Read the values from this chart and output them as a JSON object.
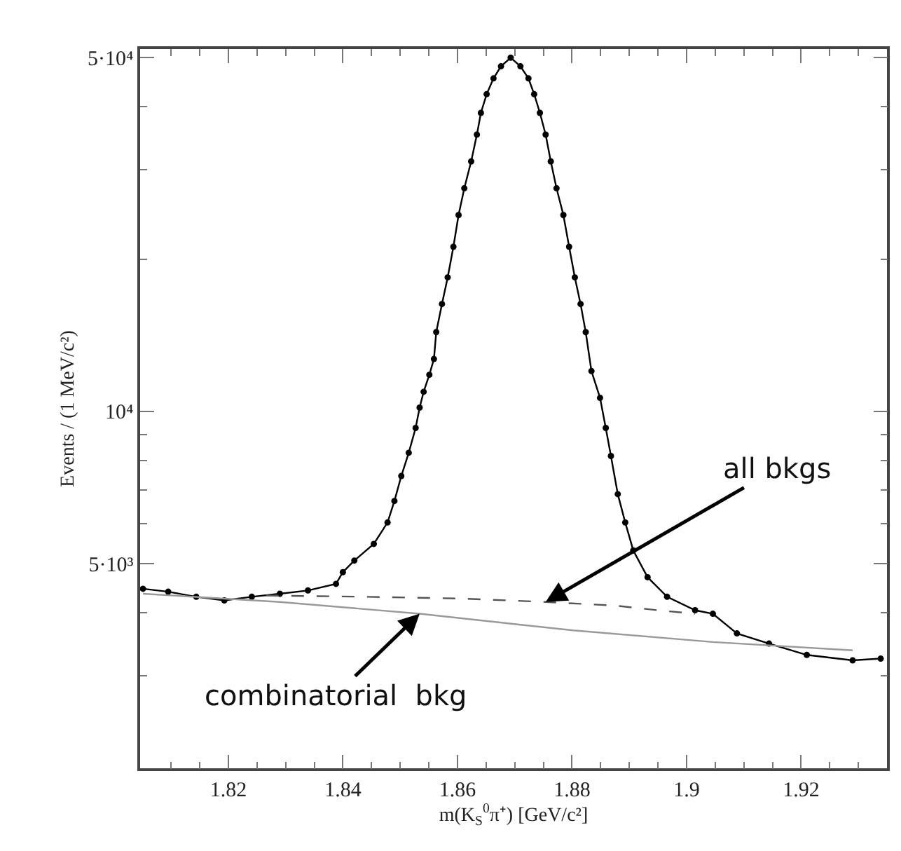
{
  "chart_data": {
    "type": "line",
    "xlabel": "m(K$_{S}$$^{0}$π⁺) [GeV/c²]",
    "ylabel": "Events / (1 MeV/c²)",
    "log": "y",
    "xlim": [
      1.8046,
      1.935
    ],
    "ylim": [
      1970,
      52000
    ],
    "xticks": [
      1.82,
      1.84,
      1.86,
      1.88,
      1.9,
      1.92,
      {
        "value": 1.81,
        "label": null
      },
      {
        "value": 1.815,
        "label": null
      },
      {
        "value": 1.825,
        "label": null
      },
      {
        "value": 1.83,
        "label": null
      },
      {
        "value": 1.835,
        "label": null
      },
      {
        "value": 1.845,
        "label": null
      },
      {
        "value": 1.85,
        "label": null
      },
      {
        "value": 1.855,
        "label": null
      },
      {
        "value": 1.865,
        "label": null
      },
      {
        "value": 1.87,
        "label": null
      },
      {
        "value": 1.875,
        "label": null
      },
      {
        "value": 1.885,
        "label": null
      },
      {
        "value": 1.89,
        "label": null
      },
      {
        "value": 1.895,
        "label": null
      },
      {
        "value": 1.905,
        "label": null
      },
      {
        "value": 1.91,
        "label": null
      },
      {
        "value": 1.915,
        "label": null
      },
      {
        "value": 1.925,
        "label": null
      },
      {
        "value": 1.93,
        "label": null
      }
    ],
    "yticks": [
      {
        "value": 5000,
        "label": "5·10³"
      },
      {
        "value": 10000,
        "label": "10⁴"
      },
      {
        "value": 50000,
        "label": "5·10⁴"
      },
      {
        "value": 3000,
        "label": null
      },
      {
        "value": 4000,
        "label": null
      },
      {
        "value": 6000,
        "label": null
      },
      {
        "value": 7000,
        "label": null
      },
      {
        "value": 8000,
        "label": null
      },
      {
        "value": 9000,
        "label": null
      },
      {
        "value": 20000,
        "label": null
      },
      {
        "value": 30000,
        "label": null
      },
      {
        "value": 40000,
        "label": null
      }
    ],
    "series": [
      {
        "marker": "circle",
        "line_style": "solid",
        "color": "#000000",
        "x": [
          1.8051,
          1.8095,
          1.8144,
          1.8193,
          1.8241,
          1.829,
          1.8339,
          1.8388,
          1.84,
          1.842,
          1.8454,
          1.8478,
          1.849,
          1.8502,
          1.8515,
          1.8527,
          1.8534,
          1.8541,
          1.8551,
          1.8559,
          1.8563,
          1.8573,
          1.8583,
          1.8593,
          1.8602,
          1.8612,
          1.8624,
          1.8634,
          1.8641,
          1.8651,
          1.8663,
          1.8676,
          1.8693,
          1.871,
          1.8724,
          1.8734,
          1.8744,
          1.8754,
          1.8763,
          1.8773,
          1.8785,
          1.8795,
          1.8805,
          1.8815,
          1.8824,
          1.8834,
          1.8849,
          1.8859,
          1.8868,
          1.888,
          1.8893,
          1.8907,
          1.8932,
          1.8966,
          1.9015,
          1.9046,
          1.9088,
          1.9144,
          1.921,
          1.929,
          1.9339
        ],
        "values": [
          4460,
          4400,
          4300,
          4230,
          4300,
          4360,
          4425,
          4560,
          4810,
          5070,
          5470,
          6030,
          6650,
          7450,
          8280,
          9270,
          10170,
          10930,
          11810,
          12690,
          14340,
          16300,
          18400,
          21150,
          24430,
          27600,
          31190,
          35240,
          38900,
          42350,
          45500,
          48080,
          50000,
          48080,
          45500,
          42350,
          38900,
          35240,
          31190,
          27600,
          24430,
          21150,
          18400,
          16300,
          14340,
          12010,
          10630,
          9270,
          8160,
          6860,
          6030,
          5310,
          4700,
          4300,
          4045,
          3980,
          3640,
          3475,
          3300,
          3220,
          3245
        ]
      },
      {
        "marker": "none",
        "line_style": "dashed",
        "color": "#555555",
        "x": [
          1.8266,
          1.8437,
          1.8607,
          1.8754,
          1.8876,
          1.8949,
          1.9015
        ],
        "values": [
          4325,
          4300,
          4265,
          4200,
          4130,
          4045,
          3980
        ]
      },
      {
        "marker": "none",
        "line_style": "solid",
        "color": "#999999",
        "x": [
          1.8051,
          1.829,
          1.8534,
          1.8802,
          1.9046,
          1.929
        ],
        "values": [
          4360,
          4200,
          3980,
          3690,
          3500,
          3370
        ]
      }
    ],
    "annotations": [
      {
        "text": "all bkgs",
        "x": 1.8754,
        "y": 4200
      },
      {
        "text": "combinatorial  bkg",
        "x": 1.8534,
        "y": 3980
      }
    ]
  }
}
